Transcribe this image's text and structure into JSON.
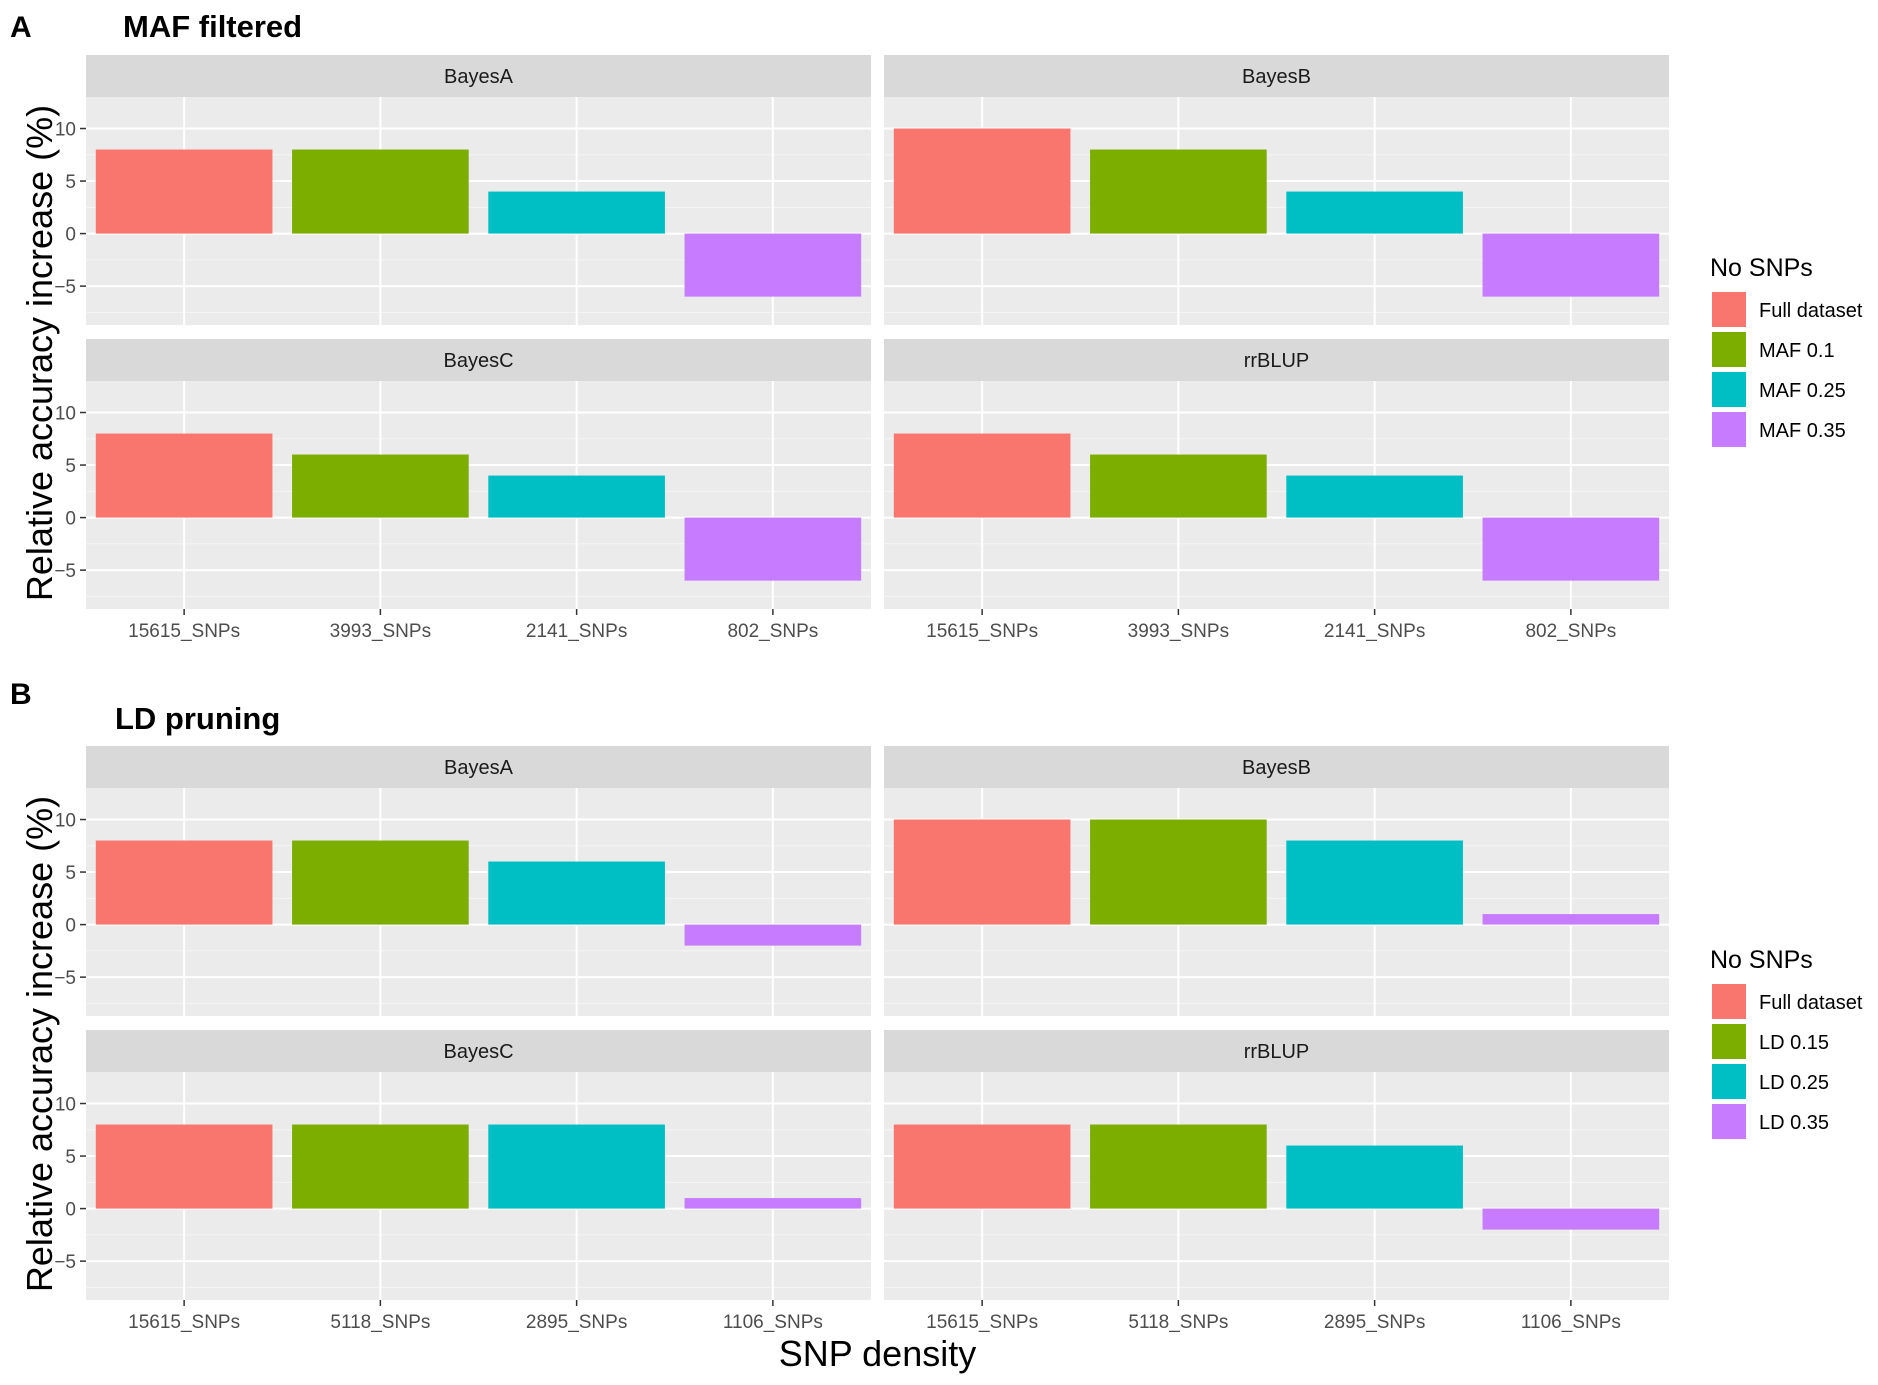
{
  "chart_data": [
    {
      "type": "bar",
      "panel_letter": "A",
      "title": "MAF filtered",
      "categories": [
        "15615_SNPs",
        "3993_SNPs",
        "2141_SNPs",
        "802_SNPs"
      ],
      "ylabel": "Relative accuracy increase (%)",
      "xlabel": "SNP density",
      "ylim": [
        -8.7,
        13
      ],
      "yticks": [
        -5,
        0,
        5,
        10
      ],
      "ytick_labels": [
        "−5",
        "0",
        "5",
        "10"
      ],
      "legend": {
        "title": "No SNPs",
        "items": [
          {
            "label": "Full dataset",
            "color": "#F8766D"
          },
          {
            "label": "MAF 0.1",
            "color": "#7CAE00"
          },
          {
            "label": "MAF 0.25",
            "color": "#00BFC4"
          },
          {
            "label": "MAF 0.35",
            "color": "#C77CFF"
          }
        ]
      },
      "facets": [
        {
          "name": "BayesA",
          "values": [
            8,
            8,
            4,
            -6
          ]
        },
        {
          "name": "BayesB",
          "values": [
            10,
            8,
            4,
            -6
          ]
        },
        {
          "name": "BayesC",
          "values": [
            8,
            6,
            4,
            -6
          ]
        },
        {
          "name": "rrBLUP",
          "values": [
            8,
            6,
            4,
            -6
          ]
        }
      ]
    },
    {
      "type": "bar",
      "panel_letter": "B",
      "title": "LD pruning",
      "categories": [
        "15615_SNPs",
        "5118_SNPs",
        "2895_SNPs",
        "1106_SNPs"
      ],
      "ylabel": "Relative accuracy increase (%)",
      "xlabel": "SNP density",
      "ylim": [
        -8.7,
        13
      ],
      "yticks": [
        -5,
        0,
        5,
        10
      ],
      "ytick_labels": [
        "−5",
        "0",
        "5",
        "10"
      ],
      "legend": {
        "title": "No SNPs",
        "items": [
          {
            "label": "Full dataset",
            "color": "#F8766D"
          },
          {
            "label": "LD 0.15",
            "color": "#7CAE00"
          },
          {
            "label": "LD 0.25",
            "color": "#00BFC4"
          },
          {
            "label": "LD 0.35",
            "color": "#C77CFF"
          }
        ]
      },
      "facets": [
        {
          "name": "BayesA",
          "values": [
            8,
            8,
            6,
            -2
          ]
        },
        {
          "name": "BayesB",
          "values": [
            10,
            10,
            8,
            1
          ]
        },
        {
          "name": "BayesC",
          "values": [
            8,
            8,
            8,
            1
          ]
        },
        {
          "name": "rrBLUP",
          "values": [
            8,
            8,
            6,
            -2
          ]
        }
      ]
    }
  ]
}
